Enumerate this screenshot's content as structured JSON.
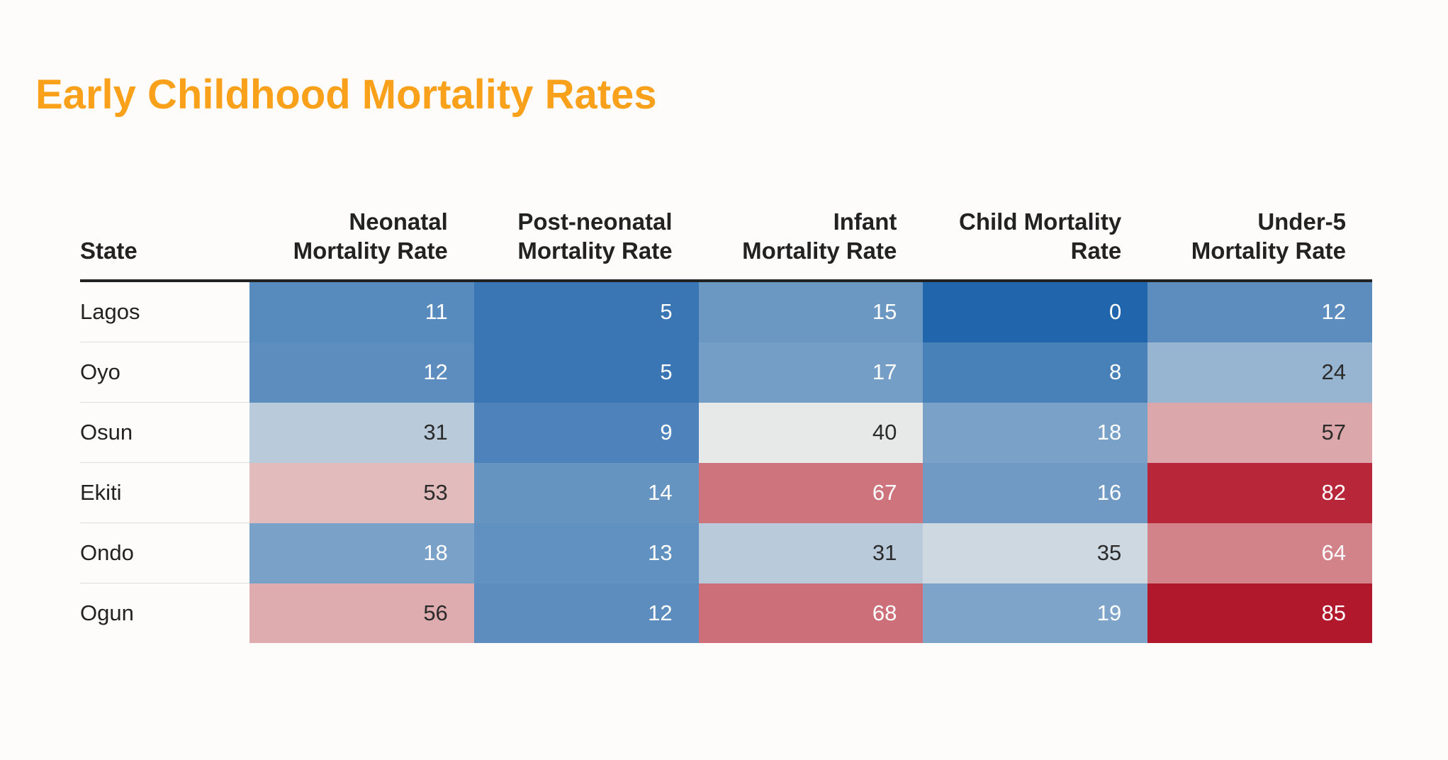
{
  "chart_data": {
    "type": "table",
    "title": "Early Childhood Mortality Rates",
    "columns": [
      [
        "State"
      ],
      [
        "Neonatal",
        "Mortality Rate"
      ],
      [
        "Post-neonatal",
        "Mortality Rate"
      ],
      [
        "Infant",
        "Mortality Rate"
      ],
      [
        "Child Mortality",
        "Rate"
      ],
      [
        "Under-5",
        "Mortality Rate"
      ]
    ],
    "rows": [
      {
        "state": "Lagos",
        "values": [
          11,
          5,
          15,
          0,
          12
        ]
      },
      {
        "state": "Oyo",
        "values": [
          12,
          5,
          17,
          8,
          24
        ]
      },
      {
        "state": "Osun",
        "values": [
          31,
          9,
          40,
          18,
          57
        ]
      },
      {
        "state": "Ekiti",
        "values": [
          53,
          14,
          67,
          16,
          82
        ]
      },
      {
        "state": "Ondo",
        "values": [
          18,
          13,
          31,
          35,
          64
        ]
      },
      {
        "state": "Ogun",
        "values": [
          56,
          12,
          68,
          19,
          85
        ]
      }
    ],
    "colors": {
      "title": "#f9a11b",
      "palette_low": "#2166ac",
      "palette_mid": "#f2f1ec",
      "palette_high": "#b2182b",
      "text_light": "#ffffff",
      "text_dark": "#2b2b2b"
    }
  }
}
